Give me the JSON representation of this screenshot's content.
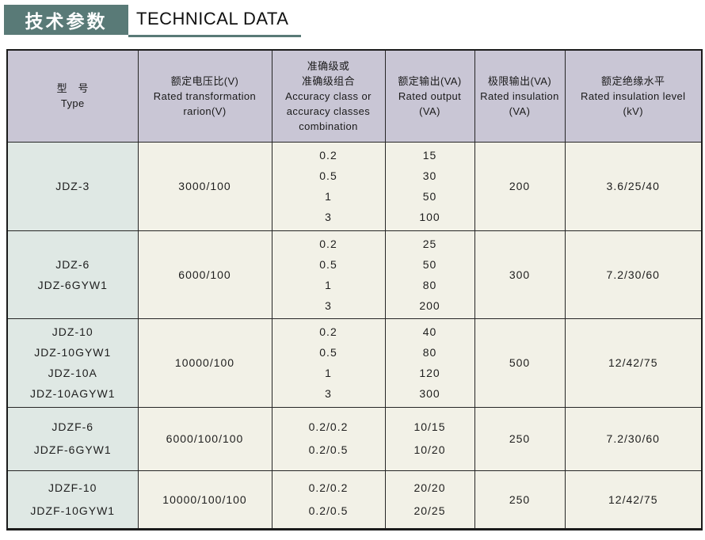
{
  "header": {
    "title_cn": "技术参数",
    "title_en": "TECHNICAL DATA"
  },
  "colors": {
    "accent_teal": "#597a77",
    "header_row_bg": "#c9c6d5",
    "type_col_bg": "#dfe8e4",
    "data_cell_bg": "#f2f1e7",
    "border": "#1f1f1f"
  },
  "table": {
    "columns": [
      {
        "id": "type",
        "lines": [
          "型　号",
          "Type"
        ]
      },
      {
        "id": "ratio",
        "lines": [
          "额定电压比(V)",
          "Rated transformation",
          "rarion(V)"
        ]
      },
      {
        "id": "accuracy",
        "lines": [
          "准确级或",
          "准确级组合",
          "Accuracy class or",
          "accuracy classes",
          "combination"
        ]
      },
      {
        "id": "output",
        "lines": [
          "额定输出(VA)",
          "Rated output",
          "(VA)"
        ]
      },
      {
        "id": "limit",
        "lines": [
          "极限输出(VA)",
          "Rated insulation",
          "(VA)"
        ]
      },
      {
        "id": "insulation",
        "lines": [
          "额定绝缘水平",
          "Rated insulation level",
          "(kV)"
        ]
      }
    ],
    "rows": [
      {
        "models": [
          "JDZ-3"
        ],
        "ratio": "3000/100",
        "accuracy": [
          "0.2",
          "0.5",
          "1",
          "3"
        ],
        "output": [
          "15",
          "30",
          "50",
          "100"
        ],
        "limit": "200",
        "insulation": "3.6/25/40"
      },
      {
        "models": [
          "JDZ-6",
          "JDZ-6GYW1"
        ],
        "ratio": "6000/100",
        "accuracy": [
          "0.2",
          "0.5",
          "1",
          "3"
        ],
        "output": [
          "25",
          "50",
          "80",
          "200"
        ],
        "limit": "300",
        "insulation": "7.2/30/60"
      },
      {
        "models": [
          "JDZ-10",
          "JDZ-10GYW1",
          "JDZ-10A",
          "JDZ-10AGYW1"
        ],
        "ratio": "10000/100",
        "accuracy": [
          "0.2",
          "0.5",
          "1",
          "3"
        ],
        "output": [
          "40",
          "80",
          "120",
          "300"
        ],
        "limit": "500",
        "insulation": "12/42/75"
      },
      {
        "models": [
          "JDZF-6",
          "JDZF-6GYW1"
        ],
        "ratio": "6000/100/100",
        "accuracy": [
          "0.2/0.2",
          "0.2/0.5"
        ],
        "output": [
          "10/15",
          "10/20"
        ],
        "limit": "250",
        "insulation": "7.2/30/60"
      },
      {
        "models": [
          "JDZF-10",
          "JDZF-10GYW1"
        ],
        "ratio": "10000/100/100",
        "accuracy": [
          "0.2/0.2",
          "0.2/0.5"
        ],
        "output": [
          "20/20",
          "20/25"
        ],
        "limit": "250",
        "insulation": "12/42/75"
      }
    ]
  }
}
